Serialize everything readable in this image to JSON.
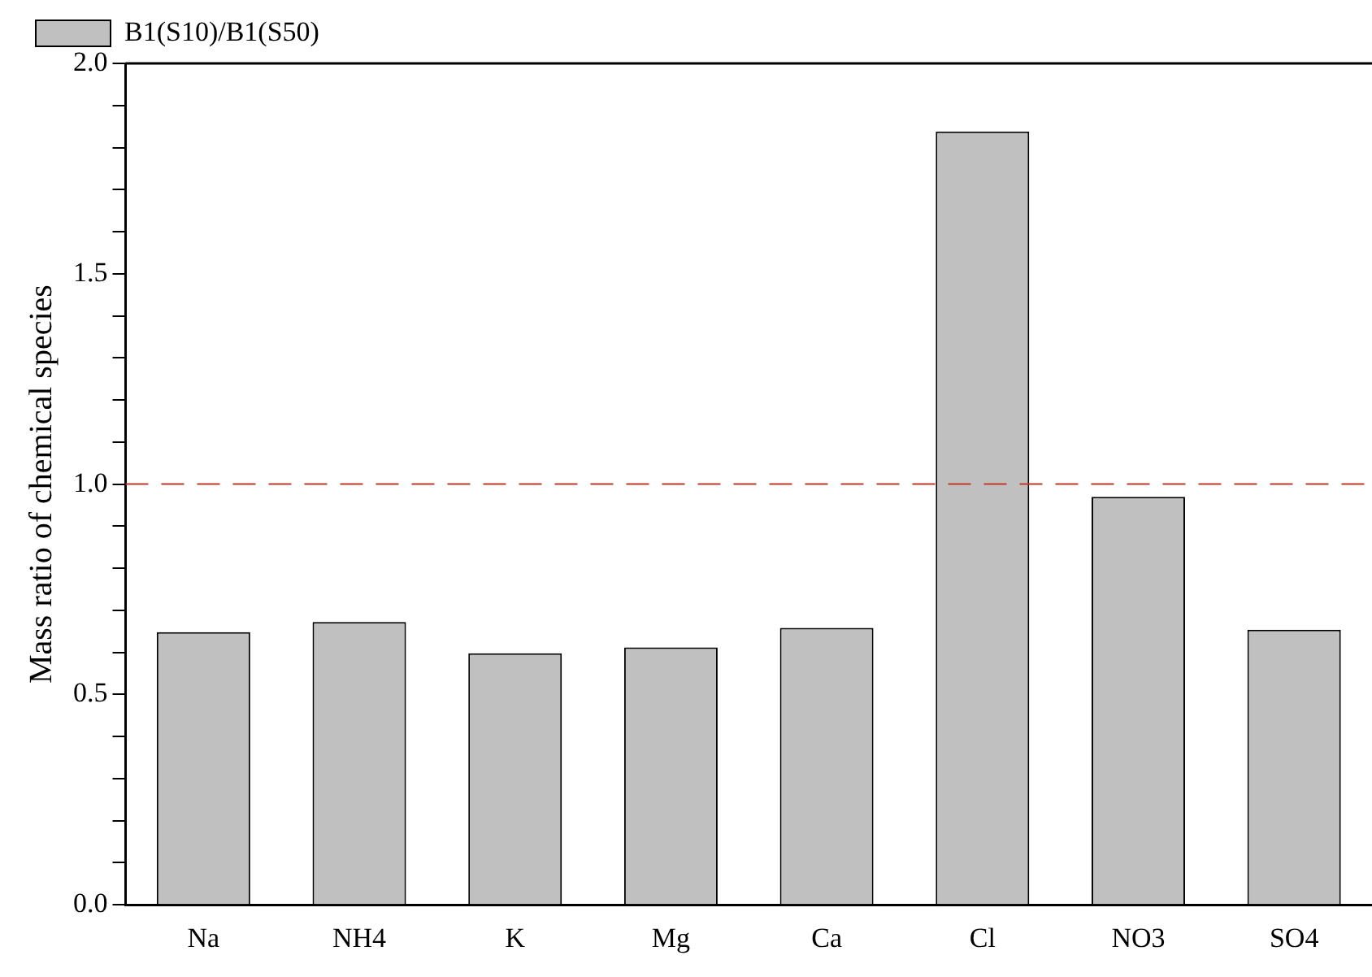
{
  "chart_data": {
    "type": "bar",
    "ylabel": "Mass ratio of chemical species",
    "categories": [
      "Na",
      "NH4",
      "K",
      "Mg",
      "Ca",
      "Cl",
      "NO3",
      "SO4"
    ],
    "series": [
      {
        "name": "B1(S10)/B1(S50)",
        "color": "#c0c0c0",
        "values": [
          0.648,
          0.672,
          0.598,
          0.612,
          0.658,
          1.838,
          0.97,
          0.654
        ]
      }
    ],
    "ylim": [
      0,
      2
    ],
    "yticks": [
      {
        "value": 0,
        "label": "0.0"
      },
      {
        "value": 0.1,
        "label": null
      },
      {
        "value": 0.2,
        "label": null
      },
      {
        "value": 0.3,
        "label": null
      },
      {
        "value": 0.4,
        "label": null
      },
      "0.5",
      {
        "value": 0.6,
        "label": null
      },
      {
        "value": 0.7,
        "label": null
      },
      {
        "value": 0.8,
        "label": null
      },
      {
        "value": 0.9,
        "label": null
      },
      {
        "value": 1,
        "label": "1.0"
      },
      {
        "value": 1.1,
        "label": null
      },
      {
        "value": 1.2,
        "label": null
      },
      {
        "value": 1.3,
        "label": null
      },
      {
        "value": 1.4,
        "label": null
      },
      {
        "value": 1.5,
        "label": "1.5"
      },
      {
        "value": 1.6,
        "label": null
      },
      {
        "value": 1.7,
        "label": null
      },
      {
        "value": 1.8,
        "label": null
      },
      {
        "value": 1.9,
        "label": null
      },
      {
        "value": 2,
        "label": "2.0"
      }
    ],
    "ref_lines": [
      {
        "axis": "y",
        "value": 1,
        "color": "#c0392b",
        "line_style": "dashed"
      }
    ],
    "legend": "top left",
    "grid": false
  }
}
